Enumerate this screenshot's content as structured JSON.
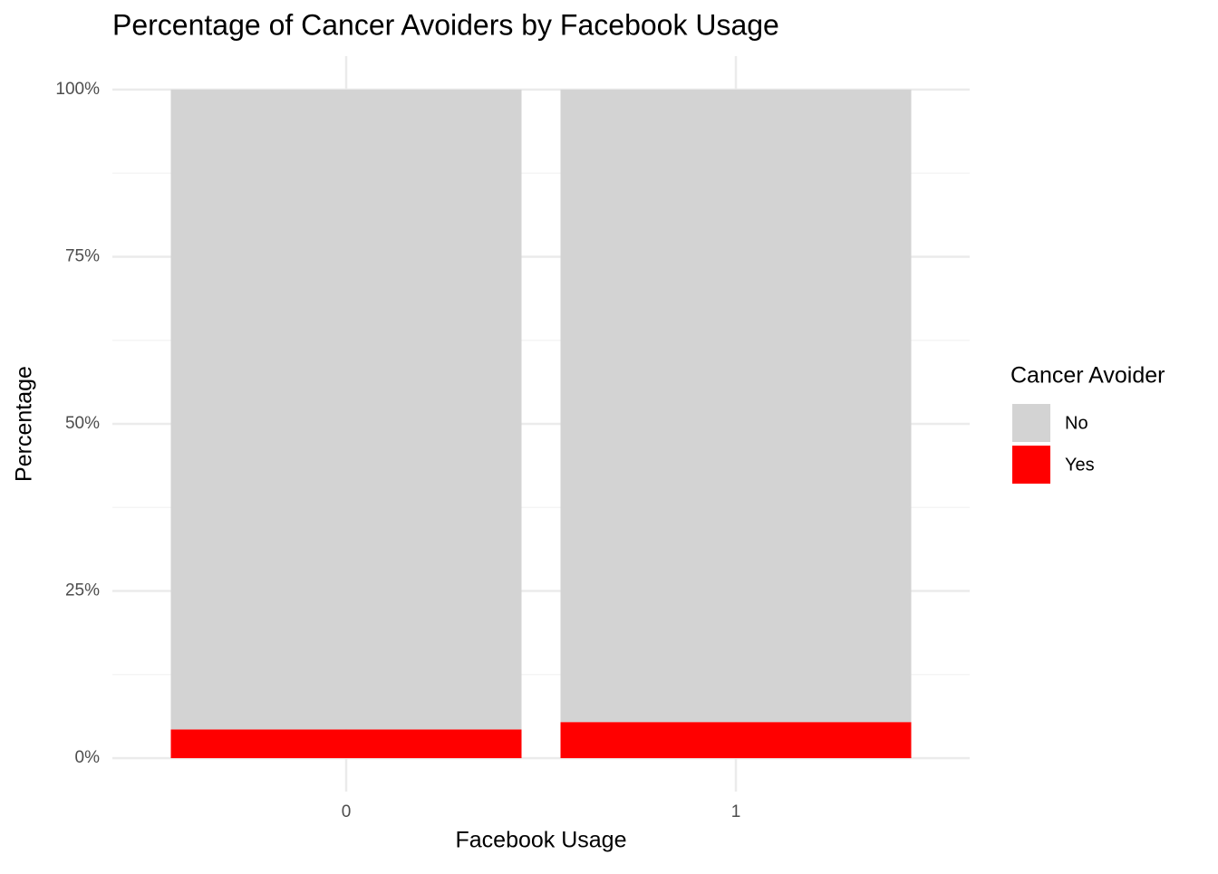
{
  "chart_data": {
    "type": "stacked_bar",
    "title": "Percentage of Cancer Avoiders by Facebook Usage",
    "x_label": "Facebook Usage",
    "y_label": "Percentage",
    "legend_title": "Cancer Avoider",
    "legend_position": "right",
    "categories": [
      "0",
      "1"
    ],
    "series": [
      {
        "name": "No",
        "color": "#d3d3d3",
        "values": [
          95.7,
          94.6
        ]
      },
      {
        "name": "Yes",
        "color": "#ff0000",
        "values": [
          4.3,
          5.4
        ]
      }
    ],
    "ylim": [
      -5,
      105
    ],
    "yticks": [
      {
        "value": 0,
        "label": "0%"
      },
      {
        "value": 25,
        "label": "25%"
      },
      {
        "value": 50,
        "label": "50%"
      },
      {
        "value": 75,
        "label": "75%"
      },
      {
        "value": 100,
        "label": "100%"
      }
    ],
    "grid": true
  }
}
